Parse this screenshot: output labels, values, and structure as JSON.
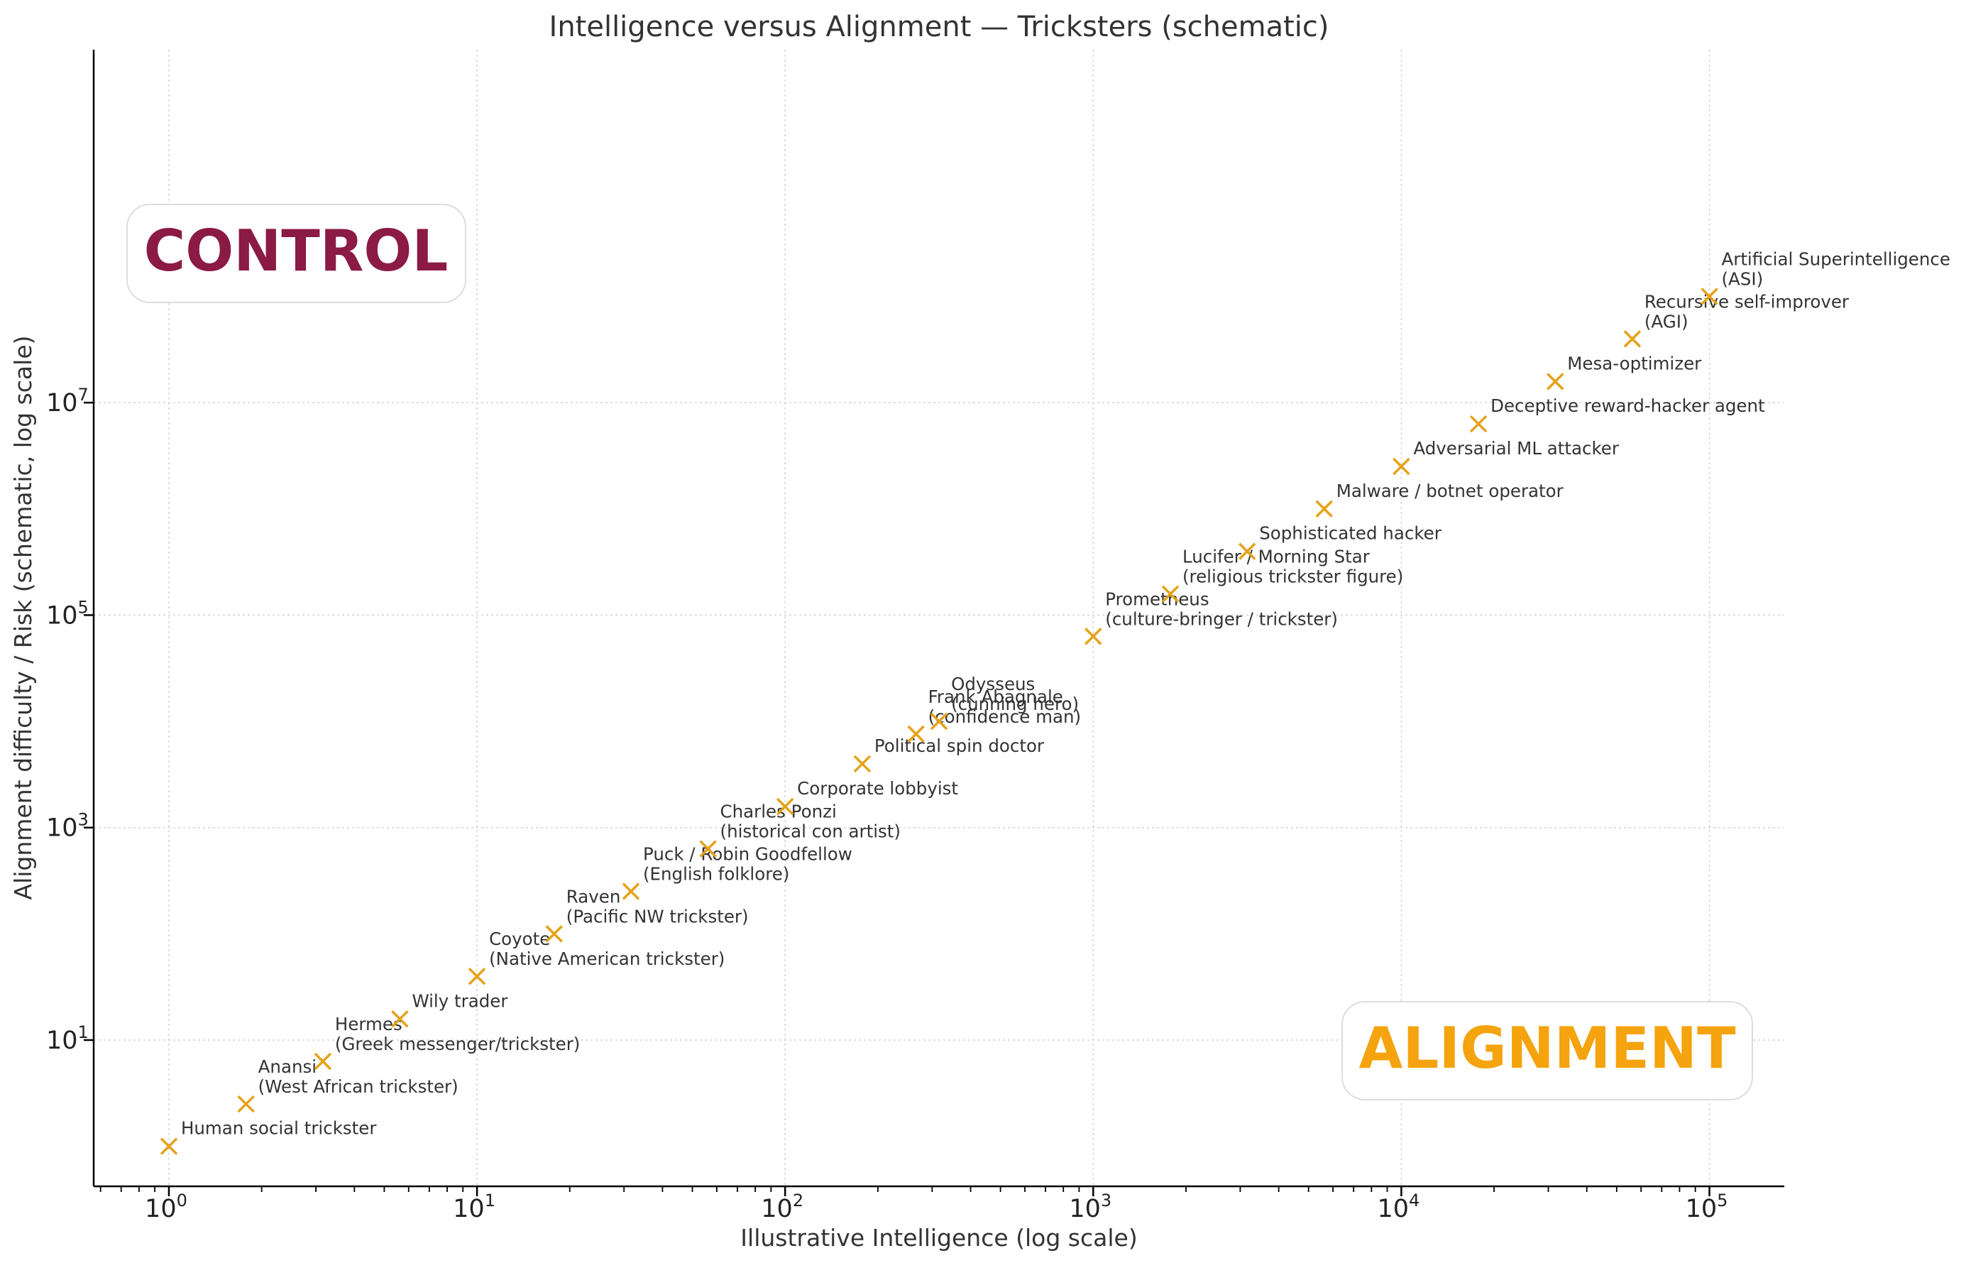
{
  "chart_data": {
    "type": "scatter",
    "title": "Intelligence versus Alignment — Tricksters (schematic)",
    "xlabel": "Illustrative Intelligence (log scale)",
    "ylabel": "Alignment difficulty / Risk (schematic, log scale)",
    "xscale": "log",
    "yscale": "log",
    "xlim": [
      0.57,
      175000
    ],
    "ylim": [
      0.42,
      21000000000
    ],
    "xticks": [
      {
        "base": "10",
        "exp": "0",
        "value": 1
      },
      {
        "base": "10",
        "exp": "1",
        "value": 10
      },
      {
        "base": "10",
        "exp": "2",
        "value": 100
      },
      {
        "base": "10",
        "exp": "3",
        "value": 1000
      },
      {
        "base": "10",
        "exp": "4",
        "value": 10000
      },
      {
        "base": "10",
        "exp": "5",
        "value": 100000
      }
    ],
    "yticks": [
      {
        "base": "10",
        "exp": "1",
        "value": 10
      },
      {
        "base": "10",
        "exp": "3",
        "value": 1000
      },
      {
        "base": "10",
        "exp": "5",
        "value": 100000
      },
      {
        "base": "10",
        "exp": "7",
        "value": 10000000
      }
    ],
    "grid": true,
    "marker_color": "#E5A219",
    "regions": [
      {
        "label": "CONTROL",
        "position": "upper-left",
        "color": "#8B1A45"
      },
      {
        "label": "ALIGNMENT",
        "position": "lower-right",
        "color": "#F5A30E"
      }
    ],
    "points": [
      {
        "x": 1,
        "y": 1,
        "label": [
          "Human social trickster"
        ]
      },
      {
        "x": 1.78,
        "y": 2.5,
        "label": [
          "Anansi",
          "(West African trickster)"
        ]
      },
      {
        "x": 3.16,
        "y": 6.3,
        "label": [
          "Hermes",
          "(Greek messenger/trickster)"
        ]
      },
      {
        "x": 5.62,
        "y": 15.8,
        "label": [
          "Wily trader"
        ]
      },
      {
        "x": 10,
        "y": 39.8,
        "label": [
          "Coyote",
          "(Native American trickster)"
        ]
      },
      {
        "x": 17.8,
        "y": 100,
        "label": [
          "Raven",
          "(Pacific NW trickster)"
        ]
      },
      {
        "x": 31.6,
        "y": 251,
        "label": [
          "Puck / Robin Goodfellow",
          "(English folklore)"
        ]
      },
      {
        "x": 56.2,
        "y": 631,
        "label": [
          "Charles Ponzi",
          "(historical con artist)"
        ]
      },
      {
        "x": 100,
        "y": 1580,
        "label": [
          "Corporate lobbyist"
        ]
      },
      {
        "x": 178,
        "y": 3980,
        "label": [
          "Political spin doctor"
        ]
      },
      {
        "x": 266,
        "y": 7600,
        "label": [
          "Frank Abagnale",
          "(confidence man)"
        ]
      },
      {
        "x": 316,
        "y": 10000,
        "label": [
          "Odysseus",
          "(cunning hero)"
        ]
      },
      {
        "x": 1000,
        "y": 63100,
        "label": [
          "Prometheus",
          "(culture-bringer / trickster)"
        ]
      },
      {
        "x": 1780,
        "y": 158000,
        "label": [
          "Lucifer / Morning Star",
          "(religious trickster figure)"
        ]
      },
      {
        "x": 3160,
        "y": 398000,
        "label": [
          "Sophisticated hacker"
        ]
      },
      {
        "x": 5620,
        "y": 1000000,
        "label": [
          "Malware / botnet operator"
        ]
      },
      {
        "x": 10000,
        "y": 2510000,
        "label": [
          "Adversarial ML attacker"
        ]
      },
      {
        "x": 17800,
        "y": 6310000,
        "label": [
          "Deceptive reward-hacker agent"
        ]
      },
      {
        "x": 31600,
        "y": 15800000,
        "label": [
          "Mesa-optimizer"
        ]
      },
      {
        "x": 56200,
        "y": 39800000,
        "label": [
          "Recursive self-improver",
          "(AGI)"
        ]
      },
      {
        "x": 100000,
        "y": 100000000,
        "label": [
          "Artificial Superintelligence",
          "(ASI)"
        ]
      }
    ]
  }
}
